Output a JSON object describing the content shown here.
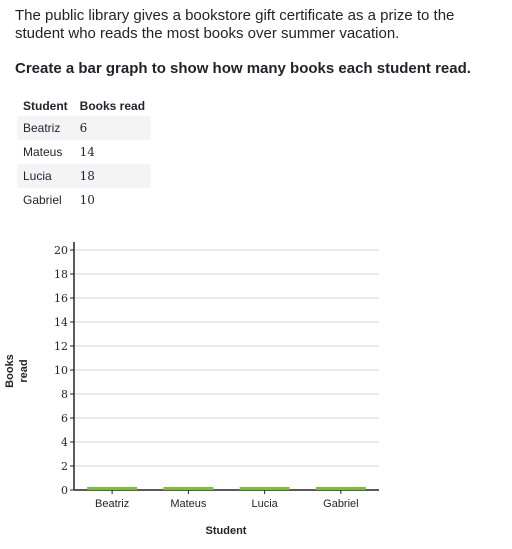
{
  "problem": {
    "text": "The public library gives a bookstore gift certificate as a prize to the student who reads the most books over summer vacation.",
    "instruction": "Create a bar graph to show how many books each student read."
  },
  "table": {
    "headers": [
      "Student",
      "Books read"
    ],
    "rows": [
      [
        "Beatriz",
        "6"
      ],
      [
        "Mateus",
        "14"
      ],
      [
        "Lucia",
        "18"
      ],
      [
        "Gabriel",
        "10"
      ]
    ]
  },
  "chart_data": {
    "type": "bar",
    "categories": [
      "Beatriz",
      "Mateus",
      "Lucia",
      "Gabriel"
    ],
    "values": [
      0,
      0,
      0,
      0
    ],
    "xlabel": "Student",
    "ylabel": "Books read",
    "ylim": [
      0,
      20
    ],
    "yticks": [
      0,
      2,
      4,
      6,
      8,
      10,
      12,
      14,
      16,
      18,
      20
    ],
    "grid": true,
    "bar_color": "#7bbf32"
  }
}
